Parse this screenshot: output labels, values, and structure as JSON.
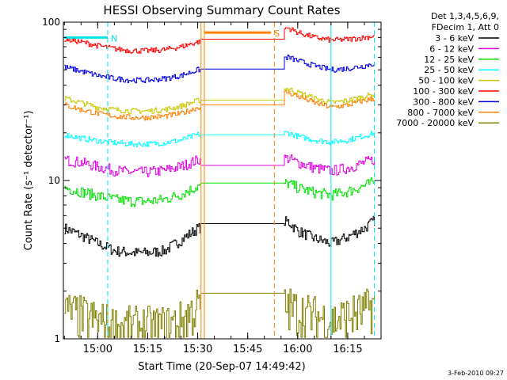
{
  "chart_data": {
    "type": "line",
    "title": "HESSI Observing Summary Count Rates",
    "xlabel": "Start Time (20-Sep-07 14:49:42)",
    "ylabel": "Count Rate (s⁻¹ detector⁻¹)",
    "yscale": "log",
    "ylim": [
      1,
      100
    ],
    "xlim": [
      "14:49:42",
      "16:25:00"
    ],
    "x_ticks": [
      "15:00",
      "15:15",
      "15:30",
      "15:45",
      "16:00",
      "16:15"
    ],
    "y_ticks": [
      "1",
      "10",
      "100"
    ],
    "grid": false,
    "legend_position": "right",
    "legend_header": [
      "Det 1,3,4,5,6,9,",
      "FDecim 1, Att 0"
    ],
    "footer_date": "3-Feb-2010 09:27",
    "flags": [
      {
        "label": "N",
        "start": "14:50",
        "end": "15:03",
        "level": 80,
        "color": "#00e5e5"
      },
      {
        "label": "S",
        "start": "15:32",
        "end": "15:52",
        "level": 86,
        "color": "#ff8000"
      }
    ],
    "markers": [
      {
        "time": "14:49:42",
        "color": "#00e5e5",
        "style": "solid"
      },
      {
        "time": "15:03",
        "color": "#00e5e5",
        "style": "dashed"
      },
      {
        "time": "15:31",
        "color": "#ff8000",
        "style": "solid"
      },
      {
        "time": "15:32",
        "color": "#ff8000",
        "style": "solid"
      },
      {
        "time": "15:53",
        "color": "#ff8000",
        "style": "dashed"
      },
      {
        "time": "16:10",
        "color": "#00e5e5",
        "style": "solid"
      },
      {
        "time": "16:23",
        "color": "#00e5e5",
        "style": "dashed"
      }
    ],
    "x": [
      "14:50",
      "14:55",
      "15:00",
      "15:05",
      "15:10",
      "15:15",
      "15:20",
      "15:25",
      "15:30",
      "15:57",
      "16:00",
      "16:05",
      "16:10",
      "16:15",
      "16:20",
      "16:23"
    ],
    "series": [
      {
        "name": "3 - 6 keV",
        "color": "#000000",
        "values": [
          5.0,
          4.5,
          4.0,
          3.6,
          3.5,
          3.5,
          3.6,
          4.2,
          5.0,
          5.5,
          4.8,
          4.3,
          4.0,
          4.4,
          5.0,
          5.6
        ]
      },
      {
        "name": "6 - 12 keV",
        "color": "#e000e0",
        "values": [
          13.5,
          13.0,
          12.2,
          11.6,
          11.3,
          11.3,
          11.6,
          12.3,
          13.5,
          13.8,
          13.0,
          12.0,
          11.5,
          12.0,
          13.0,
          13.6
        ]
      },
      {
        "name": "12 - 25 keV",
        "color": "#00e000",
        "values": [
          9.0,
          8.5,
          8.0,
          7.6,
          7.4,
          7.4,
          7.6,
          8.2,
          9.2,
          9.6,
          9.0,
          8.4,
          8.1,
          8.5,
          9.3,
          9.8
        ]
      },
      {
        "name": "25 - 50 keV",
        "color": "#00ffff",
        "values": [
          19.5,
          18.5,
          17.8,
          17.3,
          17.0,
          17.0,
          17.3,
          18.0,
          19.5,
          20.0,
          19.0,
          18.0,
          17.5,
          18.0,
          19.2,
          20.0
        ]
      },
      {
        "name": "50 - 100 keV",
        "color": "#c8c800",
        "values": [
          33,
          31,
          29,
          28,
          27.5,
          27.5,
          28,
          29.5,
          32,
          38,
          36,
          33,
          31,
          32,
          34,
          35
        ]
      },
      {
        "name": "100 - 300 keV",
        "color": "#ff0000",
        "values": [
          78,
          75,
          71,
          68,
          66,
          66,
          67,
          70,
          75,
          92,
          86,
          80,
          77,
          78,
          80,
          82
        ]
      },
      {
        "name": "300 - 800 keV",
        "color": "#0000e0",
        "values": [
          52,
          49,
          46,
          44,
          43,
          43,
          44,
          46,
          50,
          60,
          57,
          53,
          50,
          51,
          53,
          55
        ]
      },
      {
        "name": "800 - 7000 keV",
        "color": "#ff8000",
        "values": [
          30,
          28,
          26.5,
          25.5,
          25,
          25,
          25.5,
          26.5,
          29,
          36,
          34,
          31,
          29,
          30,
          32,
          33
        ]
      },
      {
        "name": "7000 - 20000 keV",
        "color": "#808000",
        "values": [
          1.5,
          1.4,
          1.3,
          1.2,
          1.2,
          1.2,
          1.2,
          1.3,
          1.6,
          1.6,
          1.5,
          1.4,
          1.3,
          1.4,
          1.5,
          1.7
        ]
      }
    ]
  }
}
